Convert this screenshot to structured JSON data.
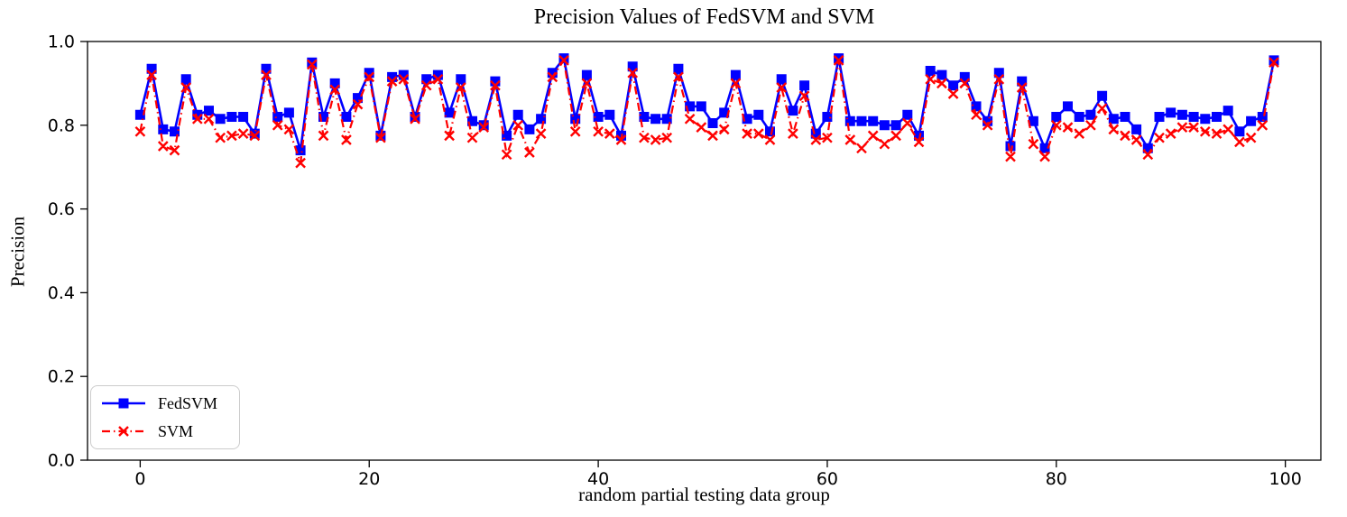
{
  "figure": {
    "title": "Precision Values of FedSVM and SVM",
    "xlabel": "random partial testing data group",
    "ylabel": "Precision"
  },
  "legend": {
    "items": [
      {
        "label": "FedSVM",
        "series": "fedsvm"
      },
      {
        "label": "SVM",
        "series": "svm"
      }
    ]
  },
  "chart_data": {
    "type": "line",
    "title": "Precision Values of FedSVM and SVM",
    "xlabel": "random partial testing data group",
    "ylabel": "Precision",
    "x_description": "group index 0-99, one point per random partial testing data group",
    "xlim": [
      -4.6,
      103.1
    ],
    "ylim": [
      0.0,
      1.0
    ],
    "xtick_values": [
      0,
      20,
      40,
      60,
      80,
      100
    ],
    "xtick_labels": [
      "0",
      "20",
      "40",
      "60",
      "80",
      "100"
    ],
    "ytick_values": [
      0.0,
      0.2,
      0.4,
      0.6,
      0.8,
      1.0
    ],
    "ytick_labels": [
      "0.0",
      "0.2",
      "0.4",
      "0.6",
      "0.8",
      "1.0"
    ],
    "grid": false,
    "legend_position": "lower left",
    "series": [
      {
        "name": "FedSVM",
        "color": "#0000ff",
        "linestyle": "solid",
        "marker": "square",
        "values": [
          0.825,
          0.935,
          0.79,
          0.785,
          0.91,
          0.825,
          0.835,
          0.815,
          0.82,
          0.82,
          0.78,
          0.935,
          0.82,
          0.83,
          0.74,
          0.95,
          0.82,
          0.9,
          0.82,
          0.865,
          0.925,
          0.775,
          0.915,
          0.92,
          0.82,
          0.91,
          0.92,
          0.83,
          0.91,
          0.81,
          0.8,
          0.905,
          0.775,
          0.825,
          0.79,
          0.815,
          0.925,
          0.96,
          0.815,
          0.92,
          0.82,
          0.825,
          0.775,
          0.94,
          0.82,
          0.815,
          0.815,
          0.935,
          0.845,
          0.845,
          0.805,
          0.83,
          0.92,
          0.815,
          0.825,
          0.785,
          0.91,
          0.835,
          0.895,
          0.78,
          0.82,
          0.96,
          0.81,
          0.81,
          0.81,
          0.8,
          0.8,
          0.825,
          0.775,
          0.93,
          0.92,
          0.895,
          0.915,
          0.845,
          0.81,
          0.925,
          0.75,
          0.905,
          0.81,
          0.745,
          0.82,
          0.845,
          0.82,
          0.825,
          0.87,
          0.815,
          0.82,
          0.79,
          0.745,
          0.82,
          0.83,
          0.825,
          0.82,
          0.815,
          0.82,
          0.835,
          0.785,
          0.81,
          0.82,
          0.955
        ]
      },
      {
        "name": "SVM",
        "color": "#ff0000",
        "linestyle": "dashdot",
        "marker": "x",
        "values": [
          0.785,
          0.92,
          0.75,
          0.74,
          0.89,
          0.815,
          0.815,
          0.77,
          0.775,
          0.78,
          0.775,
          0.92,
          0.8,
          0.79,
          0.71,
          0.945,
          0.775,
          0.885,
          0.765,
          0.85,
          0.915,
          0.77,
          0.905,
          0.91,
          0.815,
          0.895,
          0.91,
          0.775,
          0.89,
          0.77,
          0.795,
          0.895,
          0.73,
          0.8,
          0.735,
          0.78,
          0.915,
          0.955,
          0.785,
          0.9,
          0.785,
          0.78,
          0.765,
          0.925,
          0.77,
          0.765,
          0.77,
          0.915,
          0.815,
          0.795,
          0.775,
          0.79,
          0.9,
          0.78,
          0.78,
          0.765,
          0.89,
          0.78,
          0.87,
          0.765,
          0.77,
          0.955,
          0.765,
          0.745,
          0.775,
          0.755,
          0.775,
          0.805,
          0.76,
          0.91,
          0.9,
          0.875,
          0.9,
          0.825,
          0.8,
          0.91,
          0.725,
          0.89,
          0.755,
          0.725,
          0.8,
          0.795,
          0.78,
          0.8,
          0.84,
          0.79,
          0.775,
          0.765,
          0.73,
          0.77,
          0.78,
          0.795,
          0.795,
          0.785,
          0.78,
          0.79,
          0.76,
          0.77,
          0.8,
          0.95
        ]
      }
    ]
  }
}
